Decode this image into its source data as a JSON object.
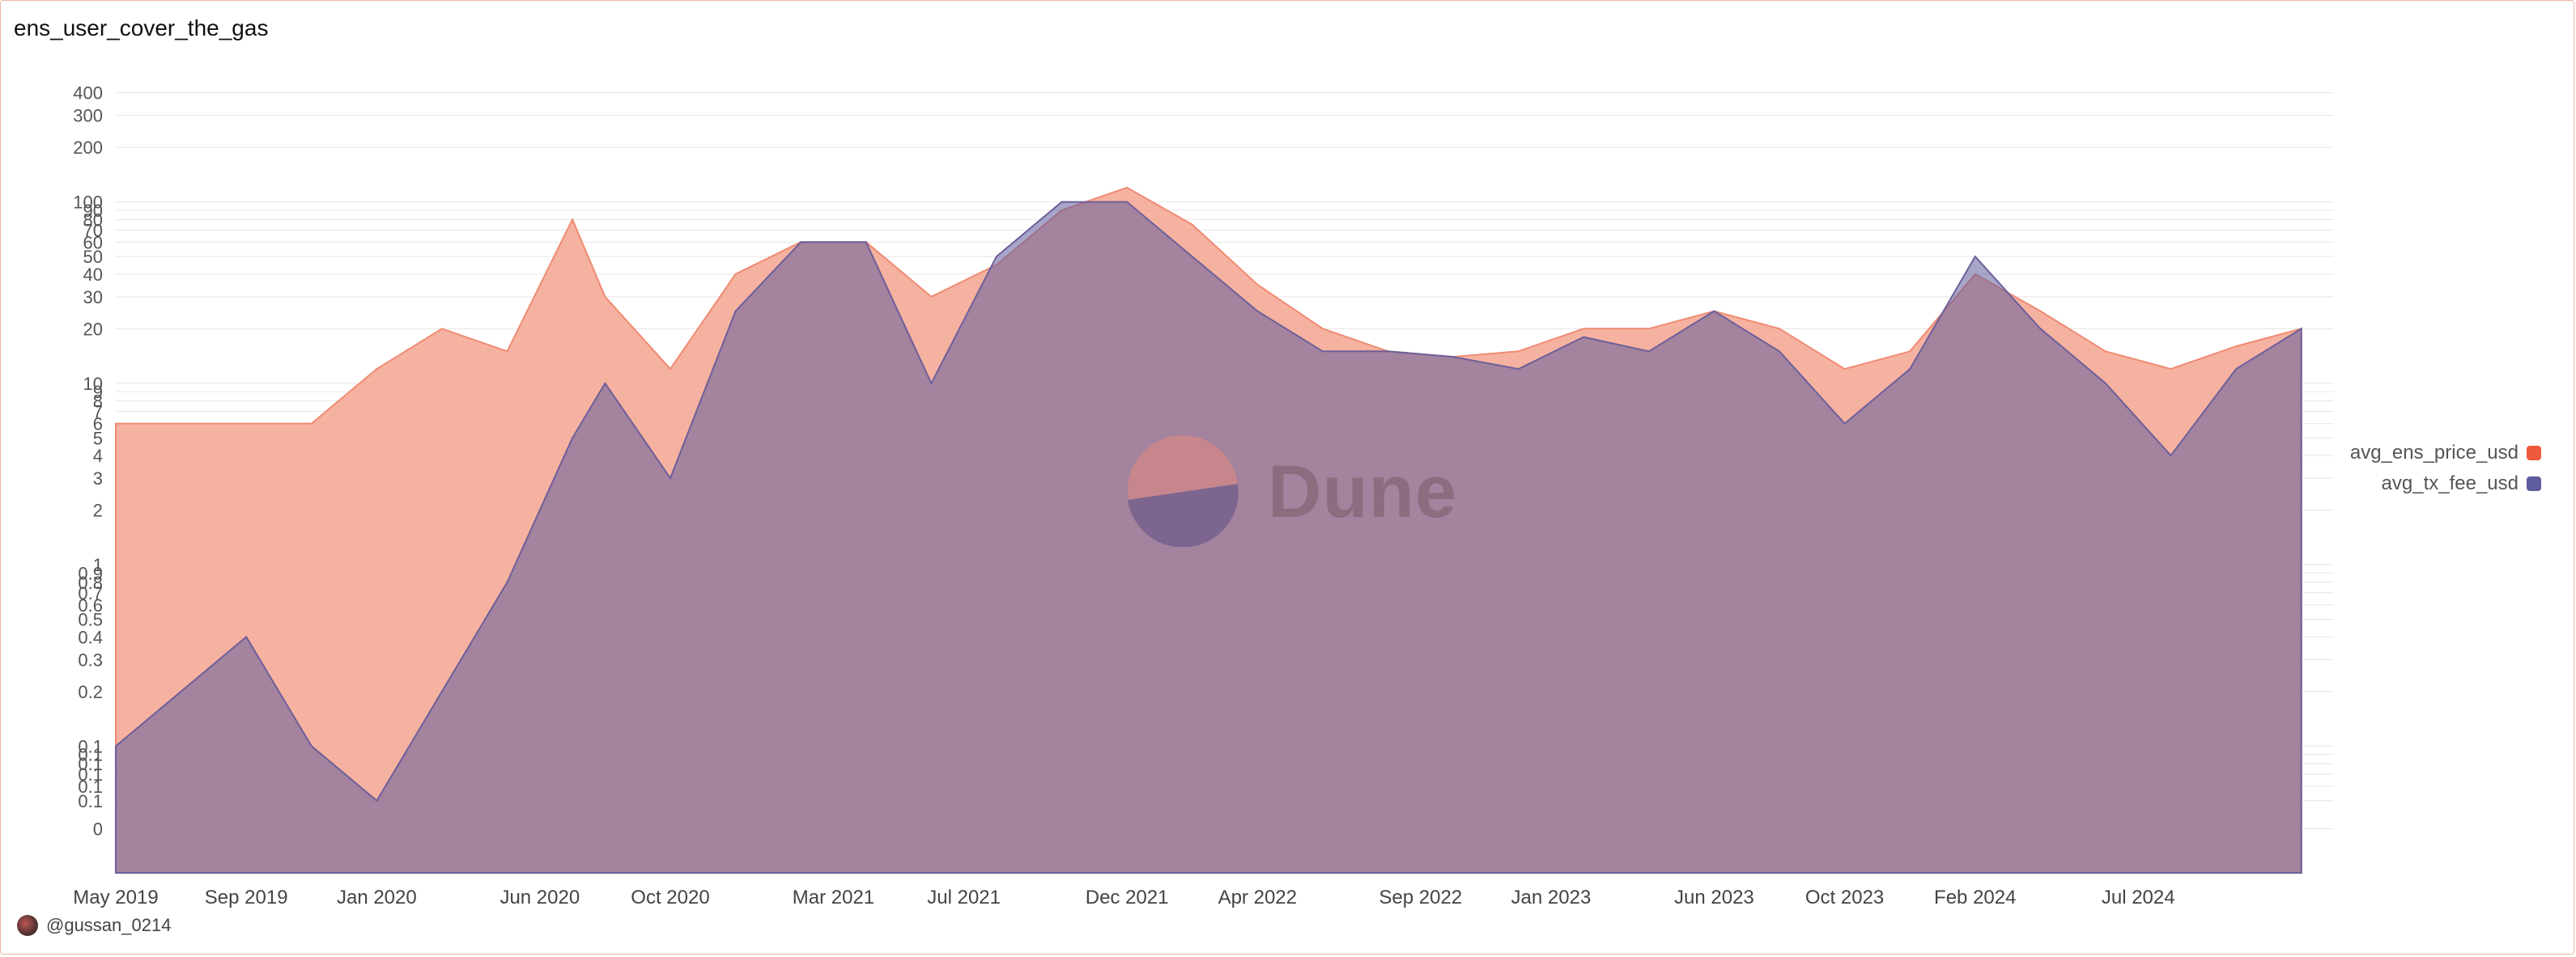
{
  "footer": {
    "user": "@gussan_0214"
  },
  "watermark": {
    "brand": "Dune"
  },
  "colors": {
    "ens": "#f4a48f",
    "tx_fee": "#5e5c9d",
    "overlap": "#bb7f8a",
    "grid": "#e6e6e6"
  },
  "chart_data": {
    "type": "area",
    "title": "ens_user_cover_the_gas",
    "xlabel": "",
    "ylabel": "",
    "yscale": "log",
    "grid": true,
    "legend_position": "right",
    "y_tick_labels": [
      "400",
      "300",
      "200",
      "100",
      "90",
      "80",
      "70",
      "60",
      "50",
      "40",
      "30",
      "20",
      "10",
      "9",
      "8",
      "7",
      "6",
      "5",
      "4",
      "3",
      "2",
      "1",
      "0.9",
      "0.8",
      "0.7",
      "0.6",
      "0.5",
      "0.4",
      "0.3",
      "0.2",
      "0.1",
      "0.1",
      "0.1",
      "0.1",
      "0.1",
      "0.1",
      "0"
    ],
    "x_tick_labels": [
      "May 2019",
      "Sep 2019",
      "Jan 2020",
      "Jun 2020",
      "Oct 2020",
      "Mar 2021",
      "Jul 2021",
      "Dec 2021",
      "Apr 2022",
      "Sep 2022",
      "Jan 2023",
      "Jun 2023",
      "Oct 2023",
      "Feb 2024",
      "Jul 2024"
    ],
    "x_range": [
      "2019-05",
      "2025-01"
    ],
    "series": [
      {
        "name": "avg_ens_price_usd",
        "x": [
          "2019-05",
          "2019-07",
          "2019-09",
          "2019-11",
          "2020-01",
          "2020-03",
          "2020-05",
          "2020-07",
          "2020-08",
          "2020-10",
          "2020-12",
          "2021-02",
          "2021-04",
          "2021-06",
          "2021-08",
          "2021-10",
          "2021-12",
          "2022-02",
          "2022-04",
          "2022-06",
          "2022-08",
          "2022-10",
          "2022-12",
          "2023-02",
          "2023-04",
          "2023-06",
          "2023-08",
          "2023-10",
          "2023-12",
          "2024-02",
          "2024-04",
          "2024-06",
          "2024-08",
          "2024-10",
          "2024-12"
        ],
        "values": [
          6,
          6,
          6,
          6,
          12,
          20,
          15,
          80,
          30,
          12,
          40,
          60,
          60,
          30,
          45,
          90,
          120,
          75,
          35,
          20,
          15,
          14,
          15,
          20,
          20,
          25,
          20,
          12,
          15,
          40,
          25,
          15,
          12,
          16,
          20
        ]
      },
      {
        "name": "avg_tx_fee_usd",
        "x": [
          "2019-05",
          "2019-07",
          "2019-09",
          "2019-11",
          "2020-01",
          "2020-03",
          "2020-05",
          "2020-07",
          "2020-08",
          "2020-10",
          "2020-12",
          "2021-02",
          "2021-04",
          "2021-06",
          "2021-08",
          "2021-10",
          "2021-12",
          "2022-02",
          "2022-04",
          "2022-06",
          "2022-08",
          "2022-10",
          "2022-12",
          "2023-02",
          "2023-04",
          "2023-06",
          "2023-08",
          "2023-10",
          "2023-12",
          "2024-02",
          "2024-04",
          "2024-06",
          "2024-08",
          "2024-10",
          "2024-12"
        ],
        "values": [
          0.1,
          0.2,
          0.4,
          0.1,
          0.05,
          0.2,
          0.8,
          5,
          10,
          3,
          25,
          60,
          60,
          10,
          50,
          100,
          100,
          50,
          25,
          15,
          15,
          14,
          12,
          18,
          15,
          25,
          15,
          6,
          12,
          50,
          20,
          10,
          4,
          12,
          20
        ]
      }
    ]
  }
}
